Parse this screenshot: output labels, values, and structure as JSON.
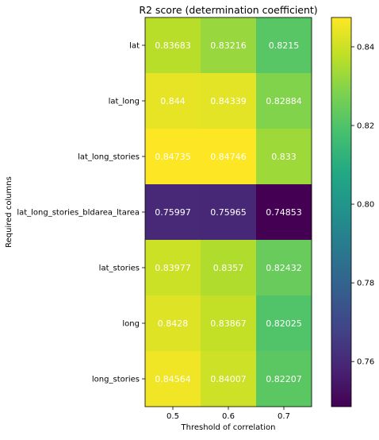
{
  "chart_data": {
    "type": "heatmap",
    "title": "R2 score (determination coefficient)",
    "xlabel": "Threshold of correlation",
    "ylabel": "Required columns",
    "x_categories": [
      "0.5",
      "0.6",
      "0.7"
    ],
    "y_categories": [
      "lat",
      "lat_long",
      "lat_long_stories",
      "lat_long_stories_bldarea_ltarea",
      "lat_stories",
      "long",
      "long_stories"
    ],
    "values": [
      [
        0.83683,
        0.83216,
        0.8215
      ],
      [
        0.844,
        0.84339,
        0.82884
      ],
      [
        0.84735,
        0.84746,
        0.833
      ],
      [
        0.75997,
        0.75965,
        0.74853
      ],
      [
        0.83977,
        0.8357,
        0.82432
      ],
      [
        0.8428,
        0.83867,
        0.82025
      ],
      [
        0.84564,
        0.84007,
        0.82207
      ]
    ],
    "cell_labels": [
      [
        "0.83683",
        "0.83216",
        "0.8215"
      ],
      [
        "0.844",
        "0.84339",
        "0.82884"
      ],
      [
        "0.84735",
        "0.84746",
        "0.833"
      ],
      [
        "0.75997",
        "0.75965",
        "0.74853"
      ],
      [
        "0.83977",
        "0.8357",
        "0.82432"
      ],
      [
        "0.8428",
        "0.83867",
        "0.82025"
      ],
      [
        "0.84564",
        "0.84007",
        "0.82207"
      ]
    ],
    "colormap": "viridis",
    "color_range": [
      0.74853,
      0.84746
    ],
    "colorbar_ticks": [
      0.76,
      0.78,
      0.8,
      0.82,
      0.84
    ],
    "colorbar_tick_labels": [
      "0.76",
      "0.78",
      "0.80",
      "0.82",
      "0.84"
    ],
    "cell_text_color": "#ffffff"
  }
}
